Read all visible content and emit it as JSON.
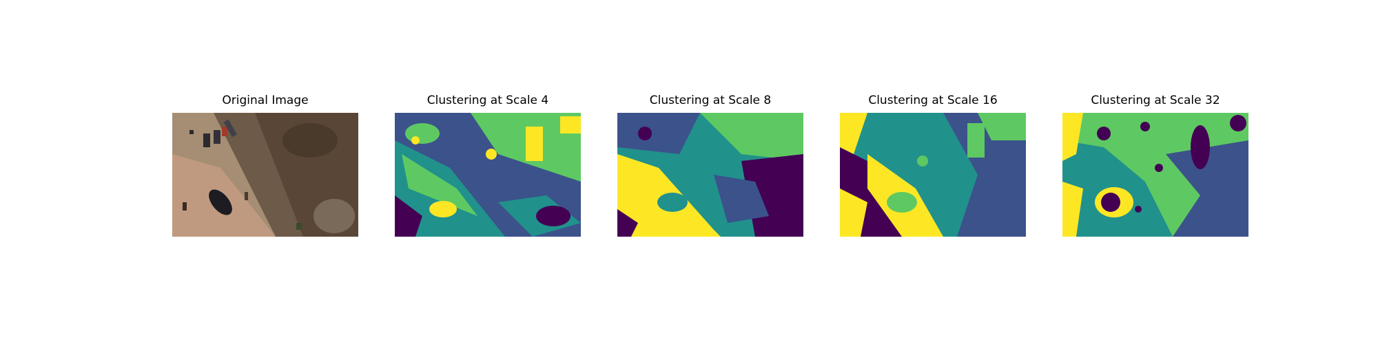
{
  "figure": {
    "panels": [
      {
        "title": "Original Image",
        "kind": "photo",
        "icon": "aerial-photo-image"
      },
      {
        "title": "Clustering at Scale 4",
        "kind": "cluster-map",
        "scale": 4,
        "icon": "cluster-map-image"
      },
      {
        "title": "Clustering at Scale 8",
        "kind": "cluster-map",
        "scale": 8,
        "icon": "cluster-map-image"
      },
      {
        "title": "Clustering at Scale 16",
        "kind": "cluster-map",
        "scale": 16,
        "icon": "cluster-map-image"
      },
      {
        "title": "Clustering at Scale 32",
        "kind": "cluster-map",
        "scale": 32,
        "icon": "cluster-map-image"
      }
    ],
    "cluster_colors": [
      "#440154",
      "#3b528b",
      "#21918c",
      "#5ec962",
      "#fde725"
    ]
  }
}
